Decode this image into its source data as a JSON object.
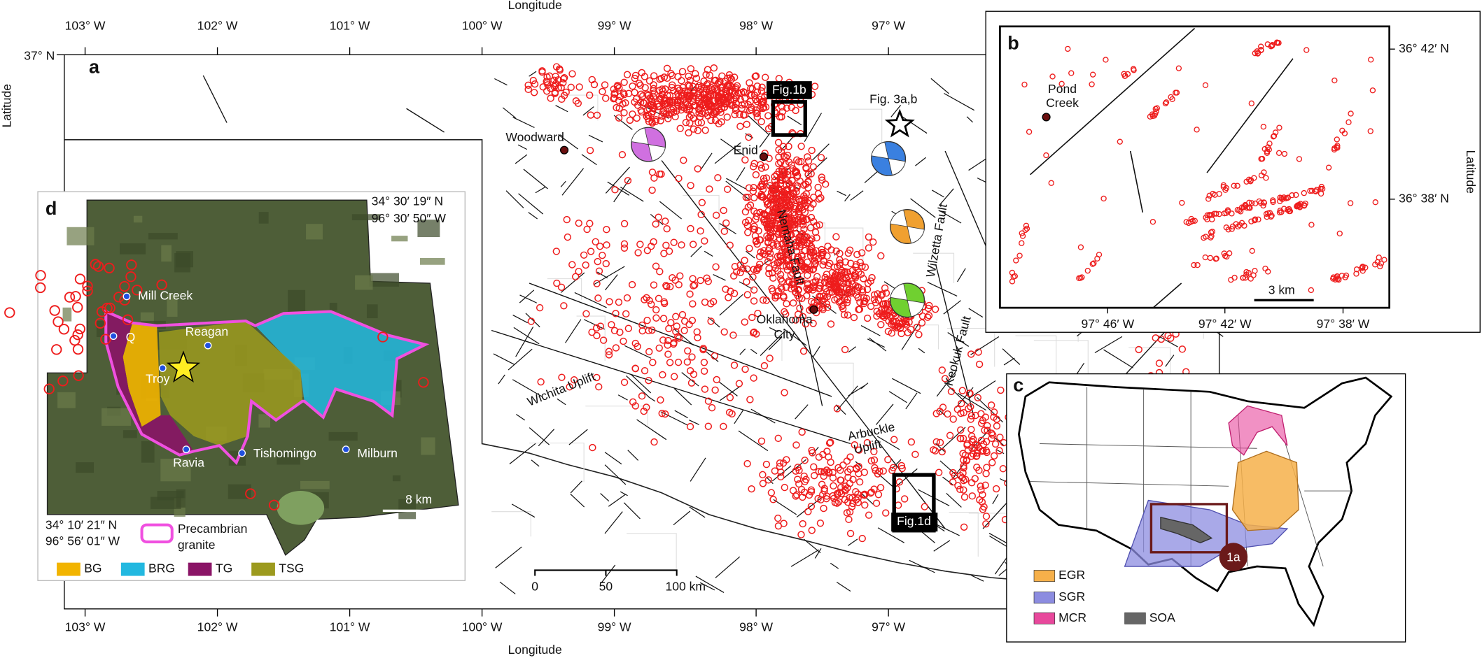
{
  "panel_a": {
    "label": "a",
    "x_axis_title": "Longitude",
    "y_axis_title": "Latitude",
    "lon_ticks": [
      "103° W",
      "102° W",
      "101° W",
      "100° W",
      "99° W",
      "98° W",
      "97° W"
    ],
    "lat_tick": "37° N",
    "places": {
      "woodward": "Woodward",
      "enid": "Enid",
      "oklahoma_city": [
        "Oklahoma",
        "City"
      ]
    },
    "features": {
      "nemaha": "Nemaha Fault",
      "wilzetta": "Wilzetta Fault",
      "keokuk": "Keokuk Fault",
      "wichita": "Wichita Uplift",
      "arbuckle": [
        "Arbuckle",
        "Uplift"
      ]
    },
    "fig_boxes": {
      "fig1b": "Fig.1b",
      "fig1d": "Fig.1d",
      "fig3": "Fig. 3a,b"
    },
    "scale_bar": [
      "0",
      "50",
      "100 km"
    ]
  },
  "panel_b": {
    "label": "b",
    "place": [
      "Pond",
      "Creek"
    ],
    "lat_ticks": [
      "36° 42′ N",
      "36° 38′ N"
    ],
    "lon_ticks": [
      "97° 46′ W",
      "97° 42′ W",
      "97° 38′ W"
    ],
    "y_axis_title": "Latitude",
    "scale_bar": "3 km"
  },
  "panel_c": {
    "label": "c",
    "marker": "1a",
    "legend": [
      {
        "name": "EGR",
        "color": "#f6b04a"
      },
      {
        "name": "SGR",
        "color": "#8c8ce0"
      },
      {
        "name": "MCR",
        "color": "#e8489c"
      },
      {
        "name": "SOA",
        "color": "#666666"
      }
    ]
  },
  "panel_d": {
    "label": "d",
    "corner_ne": [
      "34° 30′ 19″ N",
      "96° 30′ 50″ W"
    ],
    "corner_sw": [
      "34° 10′ 21″ N",
      "96° 56′ 01″ W"
    ],
    "towns": {
      "mill_creek": "Mill Creek",
      "reagan": "Reagan",
      "q": "Q",
      "troy": "Troy",
      "ravia": "Ravia",
      "tishomingo": "Tishomingo",
      "milburn": "Milburn"
    },
    "granite_label": [
      "Precambrian",
      "granite"
    ],
    "scale_bar": "8 km",
    "legend": [
      {
        "name": "BG",
        "color": "#f2b400"
      },
      {
        "name": "BRG",
        "color": "#22b8e0"
      },
      {
        "name": "TG",
        "color": "#8a1466"
      },
      {
        "name": "TSG",
        "color": "#9c9a1e"
      }
    ]
  }
}
